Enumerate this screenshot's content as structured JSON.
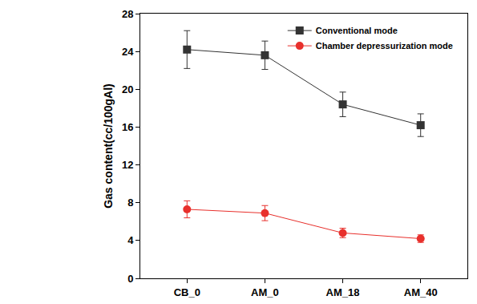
{
  "chart_data": {
    "type": "line",
    "y_label": "Gas content(cc/100gAl)",
    "categories": [
      "CB_0",
      "AM_0",
      "AM_18",
      "AM_40"
    ],
    "series": [
      {
        "name": "Conventional mode",
        "color": "#333333",
        "marker": "square",
        "values": [
          24.2,
          23.6,
          18.4,
          16.2
        ],
        "errors": [
          2.0,
          1.5,
          1.3,
          1.2
        ]
      },
      {
        "name": "Chamber depressurization mode",
        "color": "#e8302c",
        "marker": "circle",
        "values": [
          7.3,
          6.9,
          4.8,
          4.2
        ],
        "errors": [
          0.9,
          0.8,
          0.5,
          0.4
        ]
      }
    ],
    "ylim": [
      0,
      28
    ],
    "yticks": [
      0,
      4,
      8,
      12,
      16,
      20,
      24,
      28
    ],
    "grid": false,
    "legend": "top right"
  }
}
